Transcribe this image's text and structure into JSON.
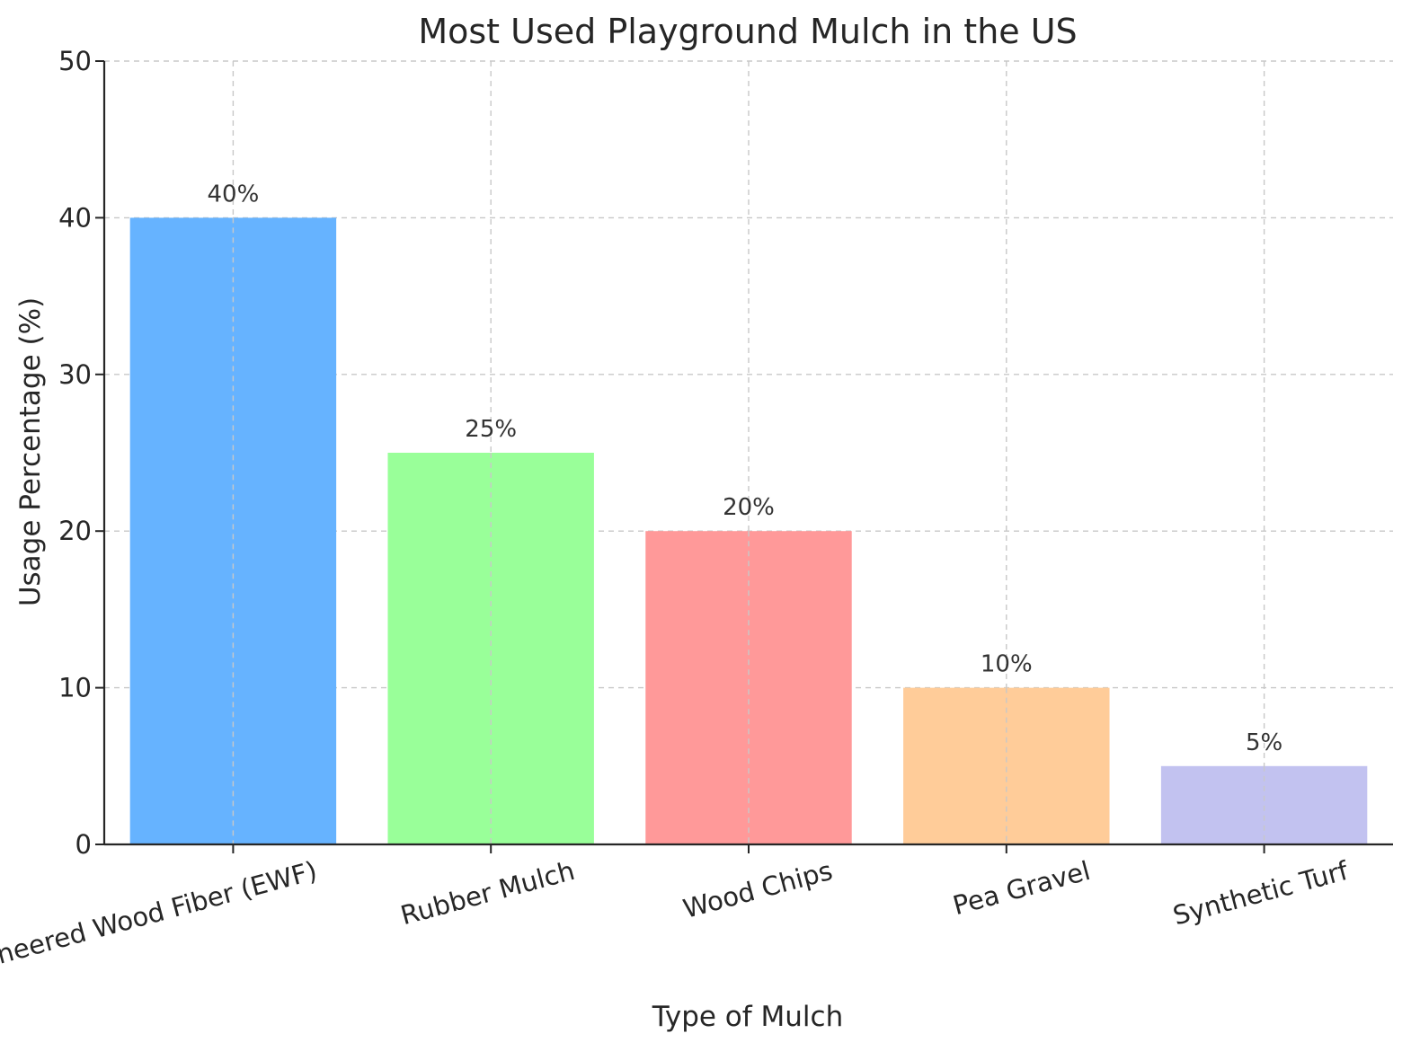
{
  "chart_data": {
    "type": "bar",
    "title": "Most Used Playground Mulch in the US",
    "xlabel": "Type of Mulch",
    "ylabel": "Usage Percentage (%)",
    "categories": [
      "Engineered Wood Fiber (EWF)",
      "Rubber Mulch",
      "Wood Chips",
      "Pea Gravel",
      "Synthetic Turf"
    ],
    "values": [
      40,
      25,
      20,
      10,
      5
    ],
    "data_labels": [
      "40%",
      "25%",
      "20%",
      "10%",
      "5%"
    ],
    "colors": [
      "#66b3ff",
      "#99ff99",
      "#ff9999",
      "#ffcc99",
      "#c2c2f0"
    ],
    "ylim": [
      0,
      50
    ],
    "yticks": [
      "0",
      "10",
      "20",
      "30",
      "40",
      "50"
    ],
    "grid": true
  }
}
